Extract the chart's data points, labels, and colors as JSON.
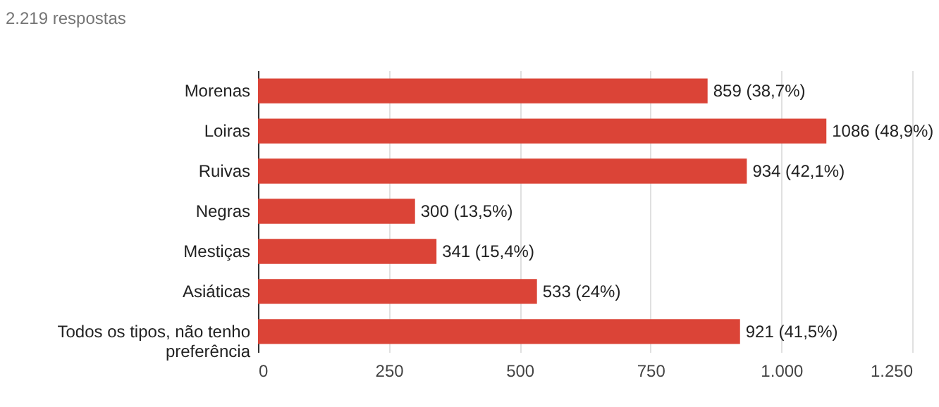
{
  "chart_data": {
    "type": "bar",
    "orientation": "horizontal",
    "title": "2.219 respostas",
    "categories": [
      "Morenas",
      "Loiras",
      "Ruivas",
      "Negras",
      "Mestiças",
      "Asiáticas",
      "Todos os tipos, não tenho preferência"
    ],
    "values": [
      859,
      1086,
      934,
      300,
      341,
      533,
      921
    ],
    "value_labels": [
      "859 (38,7%)",
      "1086 (48,9%)",
      "934 (42,1%)",
      "300 (13,5%)",
      "341 (15,4%)",
      "533 (24%)",
      "921 (41,5%)"
    ],
    "color": "#db4437",
    "xlim": [
      0,
      1250
    ],
    "xticks": [
      0,
      250,
      500,
      750,
      {
        "value": 1000,
        "label": "1.000"
      },
      {
        "value": 1250,
        "label": "1.250"
      }
    ],
    "grid": "x"
  }
}
